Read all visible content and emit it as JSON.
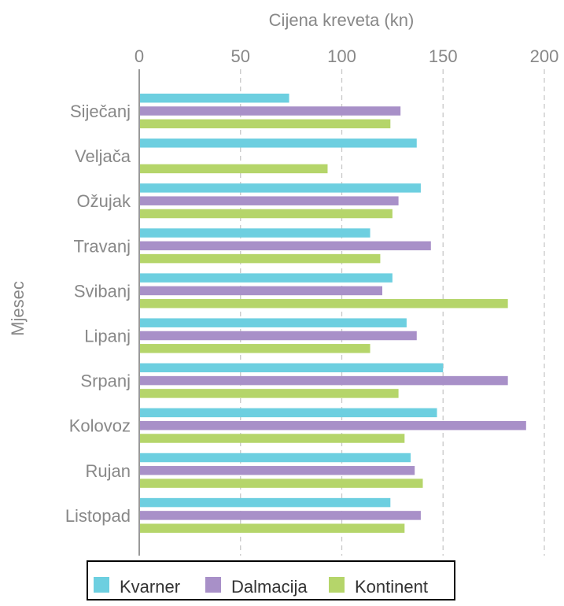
{
  "chart_data": {
    "type": "bar",
    "orientation": "horizontal",
    "title": "",
    "xlabel": "Cijena kreveta (kn)",
    "ylabel": "Mjesec",
    "xlim": [
      0,
      200
    ],
    "xticks": [
      0,
      50,
      100,
      150,
      200
    ],
    "x_axis_position": "top",
    "grid": "vertical dashed",
    "legend_position": "bottom",
    "categories": [
      "Siječanj",
      "Veljača",
      "Ožujak",
      "Travanj",
      "Svibanj",
      "Lipanj",
      "Srpanj",
      "Kolovoz",
      "Rujan",
      "Listopad"
    ],
    "series": [
      {
        "name": "Kvarner",
        "color": "#6dcfe0",
        "values": [
          74,
          137,
          139,
          114,
          125,
          132,
          150,
          147,
          134,
          124
        ]
      },
      {
        "name": "Dalmacija",
        "color": "#a890c8",
        "values": [
          129,
          null,
          128,
          144,
          120,
          137,
          182,
          191,
          136,
          139
        ]
      },
      {
        "name": "Kontinent",
        "color": "#b5d56a",
        "values": [
          124,
          93,
          125,
          119,
          182,
          114,
          128,
          131,
          140,
          131
        ]
      }
    ]
  },
  "colors": {
    "axis": "#999999",
    "grid": "#c8c8c8",
    "text": "#888888",
    "legend_border": "#000000",
    "legend_text": "#333333"
  }
}
